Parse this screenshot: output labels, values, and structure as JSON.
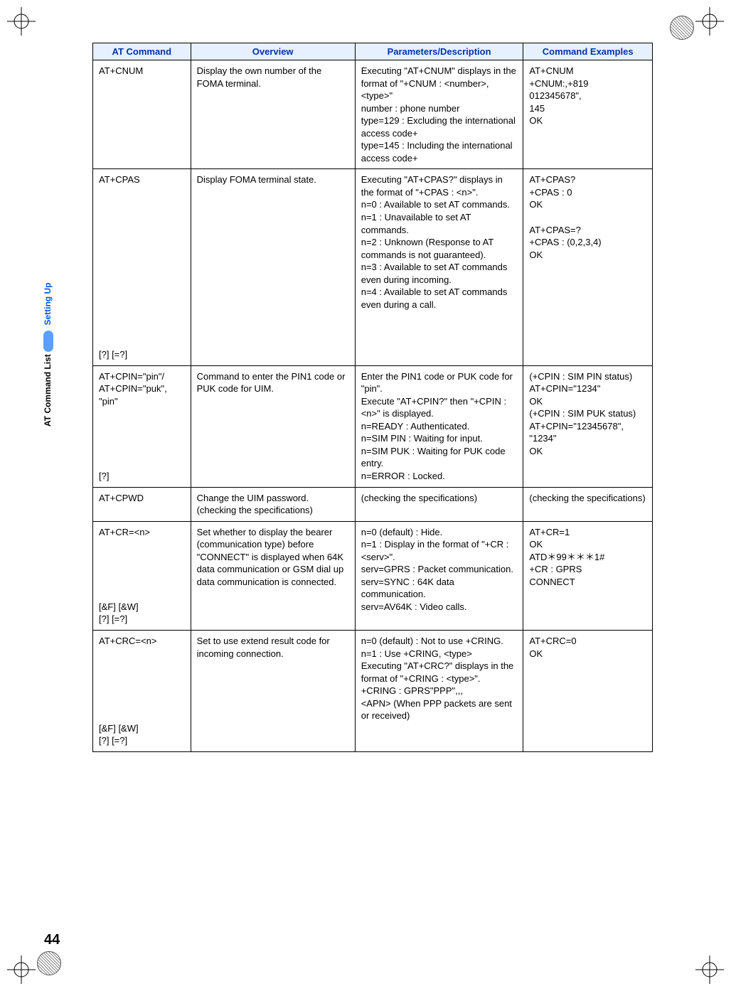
{
  "page_number": "44",
  "side_label_1": "Setting Up",
  "side_label_2": "AT Command List",
  "headers": {
    "cmd": "AT Command",
    "overview": "Overview",
    "params": "Parameters/Description",
    "examples": "Command Examples"
  },
  "colors": {
    "header_bg": "#e6f0ff",
    "header_fg": "#0033aa",
    "side_setup": "#0055dd"
  },
  "rows": [
    {
      "cmd": "AT+CNUM",
      "ov": "Display the own number of the FOMA terminal.",
      "pd": "Executing \"AT+CNUM\" displays in the format of \"+CNUM : <number>, <type>\"\nnumber : phone number\ntype=129 : Excluding the international access code+\ntype=145 : Including the international access code+",
      "ex": "AT+CNUM\n+CNUM:,+819\n012345678\",\n145\nOK"
    },
    {
      "cmd": "AT+CPAS\n\n\n\n\n\n\n\n\n\n\n\n\n\n[?] [=?]",
      "ov": "Display FOMA terminal state.",
      "pd": "Executing \"AT+CPAS?\" displays in the format of \"+CPAS : <n>\".\nn=0 : Available to set AT commands.\nn=1 : Unavailable to set AT commands.\nn=2 : Unknown (Response to AT commands is not guaranteed).\nn=3 : Available to set AT commands even during incoming.\nn=4 : Available to set AT commands even during a call.",
      "ex": "AT+CPAS?\n+CPAS : 0\nOK\n\nAT+CPAS=?\n+CPAS : (0,2,3,4)\nOK"
    },
    {
      "cmd": "AT+CPIN=\"pin\"/\nAT+CPIN=\"puk\",\n\"pin\"\n\n\n\n\n\n[?]",
      "ov": "Command to enter the PIN1 code or PUK code for UIM.",
      "pd": "Enter the PIN1 code or PUK code for \"pin\".\nExecute \"AT+CPIN?\" then \"+CPIN : <n>\" is displayed.\nn=READY : Authenticated.\nn=SIM PIN : Waiting for input.\nn=SIM PUK : Waiting for PUK code entry.\nn=ERROR : Locked.",
      "ex": "(+CPIN : SIM PIN status)\nAT+CPIN=\"1234\"\nOK\n(+CPIN : SIM PUK status)\nAT+CPIN=\"12345678\",\n\"1234\"\nOK"
    },
    {
      "cmd": "AT+CPWD",
      "ov": "Change the UIM password.\n(checking the specifications)",
      "pd": "(checking the specifications)",
      "ex": "(checking the specifications)"
    },
    {
      "cmd": "AT+CR=<n>\n\n\n\n\n\n[&F] [&W]\n[?] [=?]",
      "ov": "Set whether to display the bearer (communication type) before \"CONNECT\" is displayed when 64K data communication or GSM dial up data communication is connected.",
      "pd": "n=0 (default) : Hide.\nn=1 : Display in the format of \"+CR : <serv>\".\nserv=GPRS : Packet communication.\nserv=SYNC : 64K data communication.\nserv=AV64K : Video calls.",
      "ex": "AT+CR=1\nOK\nATD＊99＊＊＊1#\n+CR : GPRS\nCONNECT"
    },
    {
      "cmd": "AT+CRC=<n>\n\n\n\n\n\n\n[&F] [&W]\n[?] [=?]",
      "ov": "Set to use extend result code for incoming connection.",
      "pd": "n=0 (default) : Not to use +CRING.\nn=1 : Use +CRING, <type>\nExecuting \"AT+CRC?\" displays in the format of \"+CRING : <type>\".\n+CRING : GPRS\"PPP\",,,\n<APN> (When PPP packets are sent or received)",
      "ex": "AT+CRC=0\nOK"
    }
  ]
}
